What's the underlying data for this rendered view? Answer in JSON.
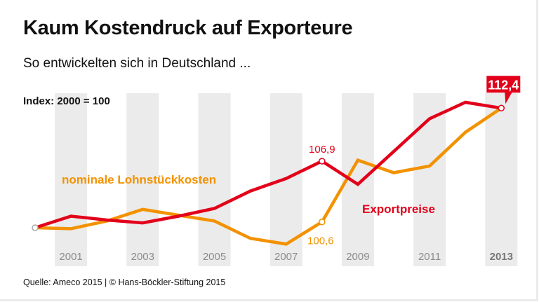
{
  "header": {
    "title": "Kaum Kostendruck auf Exporteure",
    "subtitle": "So entwickelten sich in Deutschland ...",
    "index_note": "Index: 2000 = 100"
  },
  "footer": {
    "source": "Quelle: Ameco 2015 | © Hans-Böckler-Stiftung 2015"
  },
  "colors": {
    "exportpreise": "#e2001a",
    "lohnstueckkosten": "#f39200",
    "band": "#ebebeb",
    "year_label": "#8c8c8c"
  },
  "chart_data": {
    "type": "line",
    "title": "Kaum Kostendruck auf Exporteure",
    "subtitle": "So entwickelten sich in Deutschland ...",
    "ylabel": "Index: 2000 = 100",
    "xlabel": "",
    "x": [
      2000,
      2001,
      2002,
      2003,
      2004,
      2005,
      2006,
      2007,
      2008,
      2009,
      2010,
      2011,
      2012,
      2013
    ],
    "x_tick_labels": [
      "2001",
      "2003",
      "2005",
      "2007",
      "2009",
      "2011",
      "2013"
    ],
    "x_tick_values": [
      2001,
      2003,
      2005,
      2007,
      2009,
      2011,
      2013
    ],
    "ylim": [
      97,
      114
    ],
    "grid": false,
    "legend": "inline",
    "series": [
      {
        "name": "Exportpreise",
        "color": "#e2001a",
        "values": [
          100,
          101.2,
          100.8,
          100.5,
          101.2,
          102.0,
          103.8,
          105.1,
          106.9,
          104.5,
          107.9,
          111.3,
          113.0,
          112.4
        ]
      },
      {
        "name": "nominale Lohnstückkosten",
        "color": "#f39200",
        "values": [
          100,
          99.9,
          100.7,
          101.9,
          101.3,
          100.7,
          98.9,
          98.3,
          100.6,
          107.0,
          105.7,
          106.4,
          109.9,
          112.4
        ]
      }
    ],
    "annotations": [
      {
        "series": "Exportpreise",
        "x": 2008,
        "value": 106.9,
        "text": "106,9"
      },
      {
        "series": "nominale Lohnstückkosten",
        "x": 2008,
        "value": 100.6,
        "text": "100,6"
      },
      {
        "series": "both",
        "x": 2013,
        "value": 112.4,
        "text": "112,4",
        "style": "callout"
      }
    ]
  }
}
